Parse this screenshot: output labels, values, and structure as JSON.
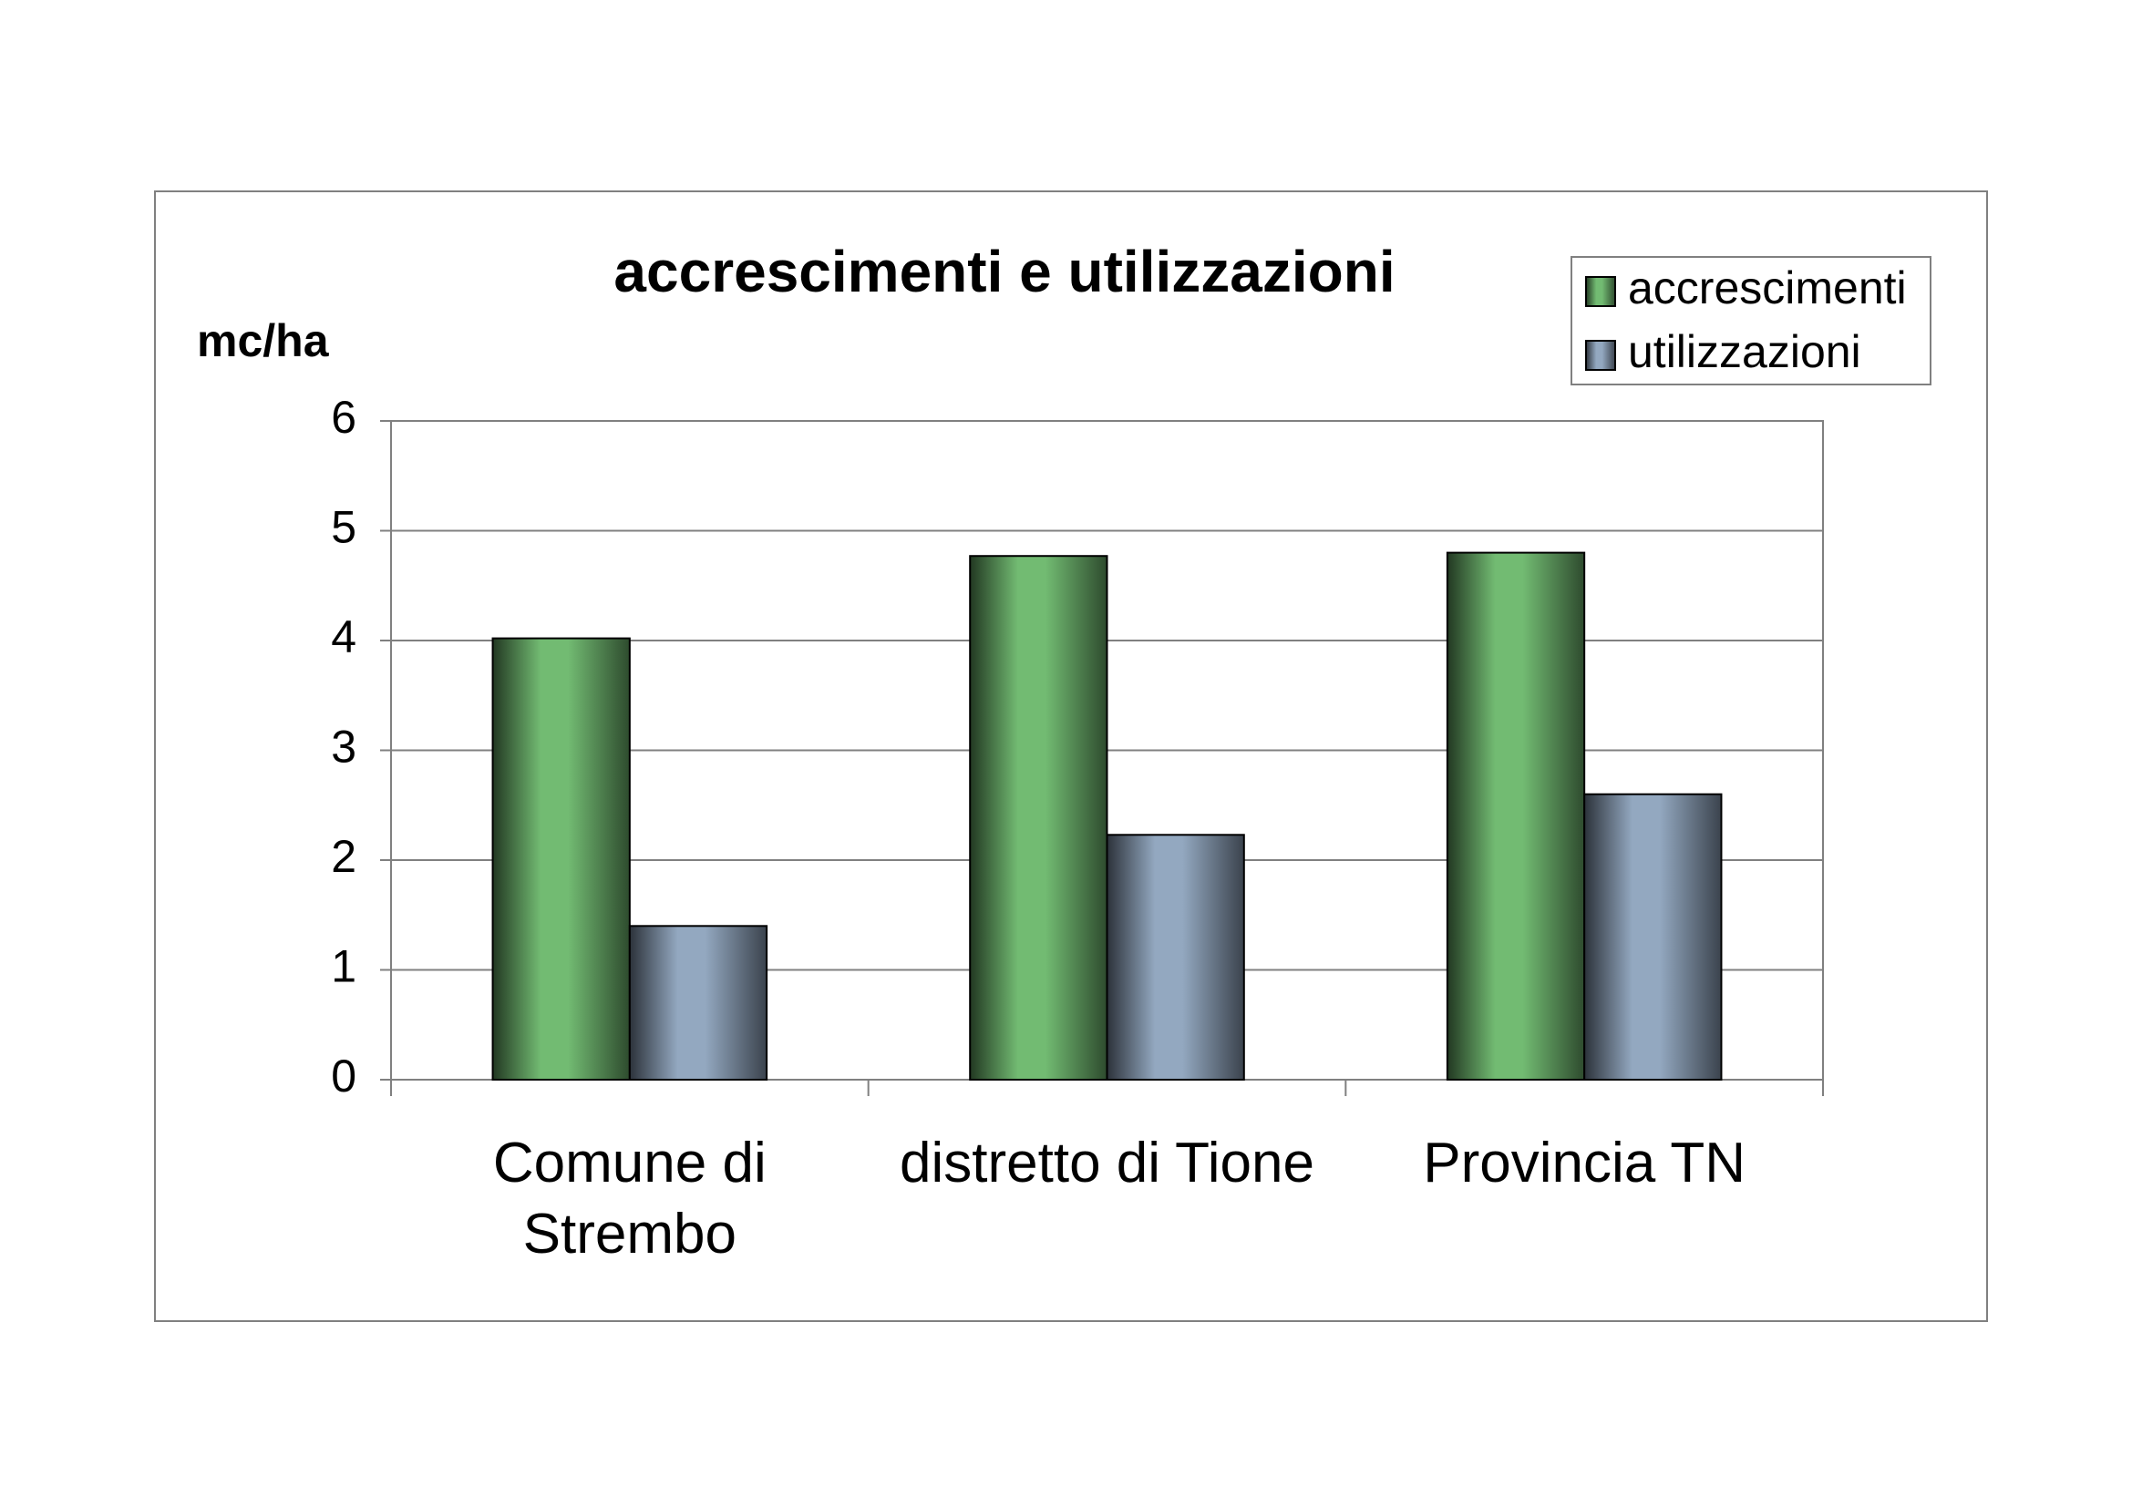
{
  "chart_data": {
    "type": "bar",
    "title": "accrescimenti e utilizzazioni",
    "y_label": "mc/ha",
    "categories": [
      "Comune di Strembo",
      "distretto di Tione",
      "Provincia TN"
    ],
    "series": [
      {
        "name": "accrescimenti",
        "color": "#72bb72",
        "values": [
          4.02,
          4.77,
          4.8
        ]
      },
      {
        "name": "utilizzazioni",
        "color": "#93a8c0",
        "values": [
          1.4,
          2.23,
          2.6
        ]
      }
    ],
    "ylim": [
      0,
      6
    ],
    "yticks": [
      0,
      1,
      2,
      3,
      4,
      5,
      6
    ],
    "grid": true,
    "legend": "top-right"
  }
}
